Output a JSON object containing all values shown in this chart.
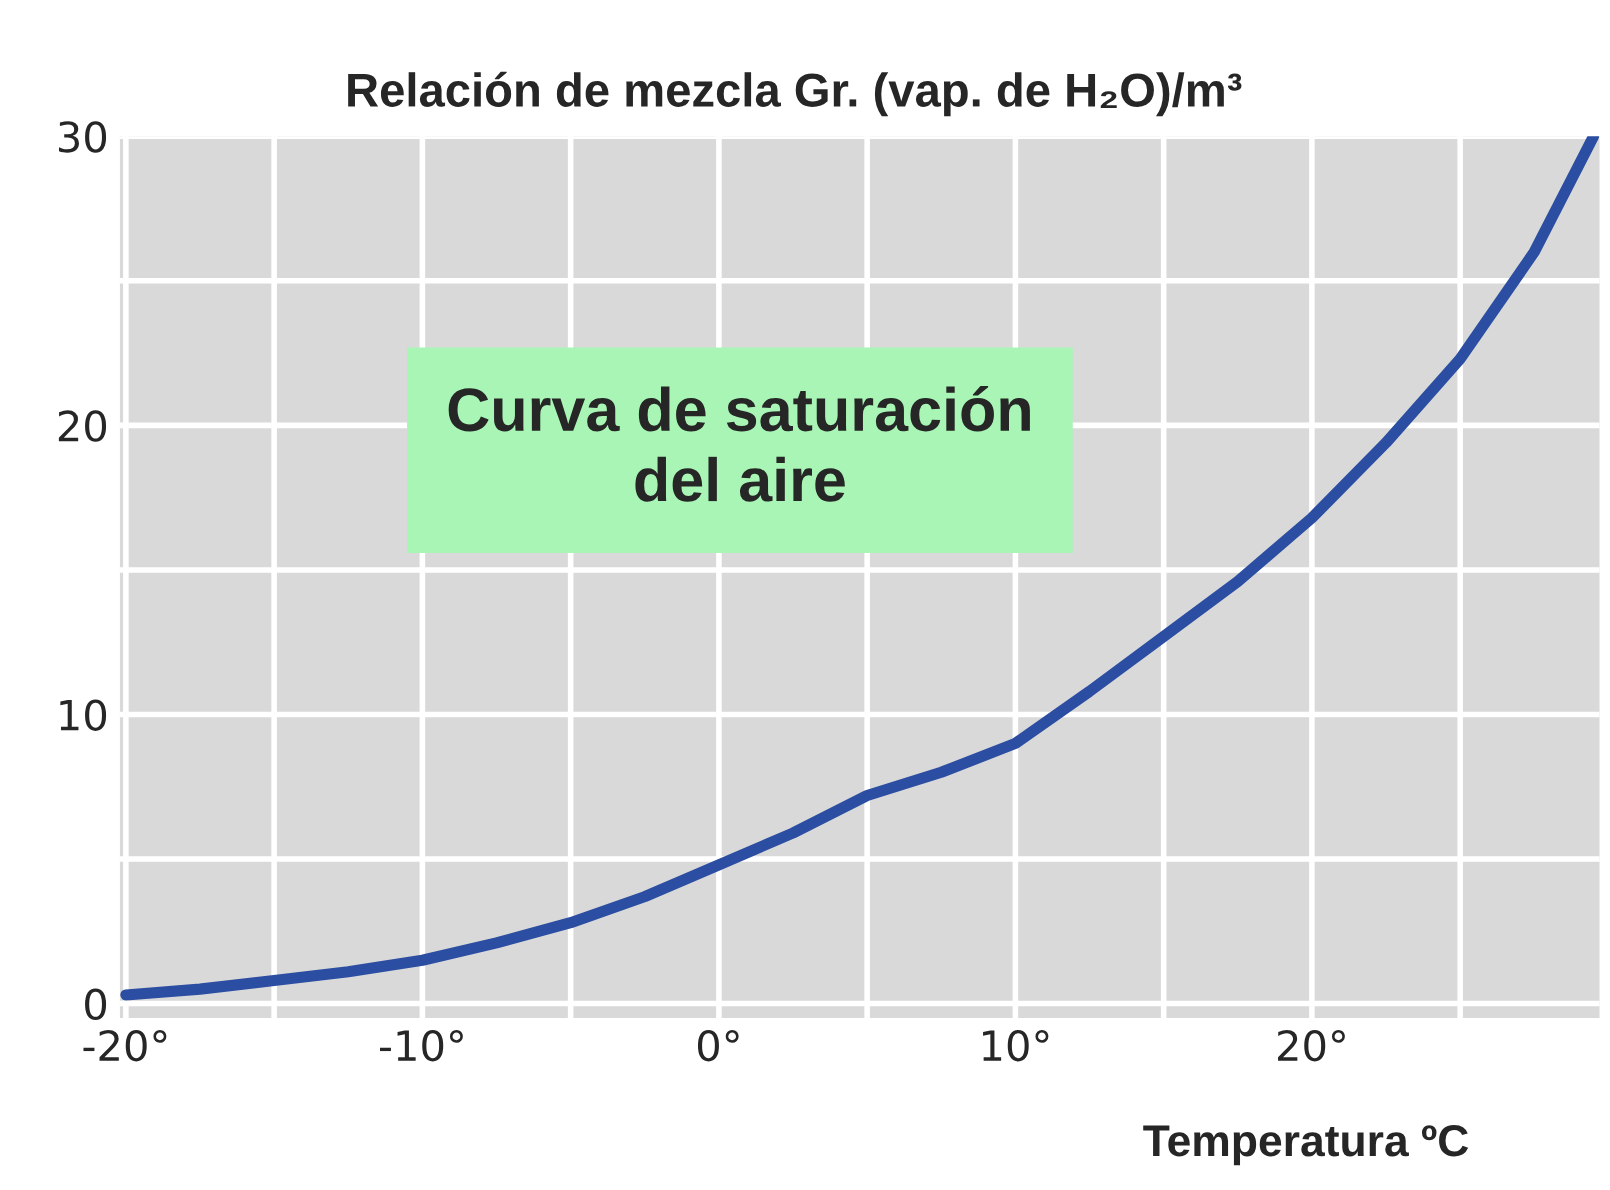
{
  "chart_data": {
    "type": "line",
    "title": "Relación de mezcla Gr. (vap. de H₂O)/m³",
    "xlabel": "Temperatura ºC",
    "annotations": [
      "Curva de saturación\ndel aire"
    ],
    "x": [
      -20,
      -17.5,
      -15,
      -12.5,
      -10,
      -7.5,
      -5,
      -2.5,
      0,
      2.5,
      5,
      7.5,
      10,
      12.5,
      15,
      17.5,
      20,
      22.5,
      25,
      27.5,
      29.5
    ],
    "series": [
      {
        "color": "#2b4ea2",
        "values": [
          0.3,
          0.5,
          0.8,
          1.1,
          1.5,
          2.1,
          2.8,
          3.7,
          4.8,
          5.9,
          7.2,
          8.0,
          9.0,
          10.8,
          12.7,
          14.6,
          16.8,
          19.4,
          22.3,
          26.0,
          30.0
        ]
      }
    ],
    "xlim": [
      -20.2,
      29.7
    ],
    "ylim": [
      -0.5,
      30
    ],
    "xticks": [
      {
        "value": -20,
        "label": "-20°"
      },
      {
        "value": -15,
        "label": null
      },
      {
        "value": -10,
        "label": "-10°"
      },
      {
        "value": -5,
        "label": null
      },
      {
        "value": 0,
        "label": "0°"
      },
      {
        "value": 5,
        "label": null
      },
      {
        "value": 10,
        "label": "10°"
      },
      {
        "value": 15,
        "label": null
      },
      {
        "value": 20,
        "label": "20°"
      },
      {
        "value": 25,
        "label": null
      }
    ],
    "yticks": [
      0,
      {
        "value": 5,
        "label": null
      },
      10,
      {
        "value": 15,
        "label": null
      },
      20,
      {
        "value": 25,
        "label": null
      },
      30
    ],
    "grid": true,
    "marker": "none",
    "line_style": "solid"
  }
}
